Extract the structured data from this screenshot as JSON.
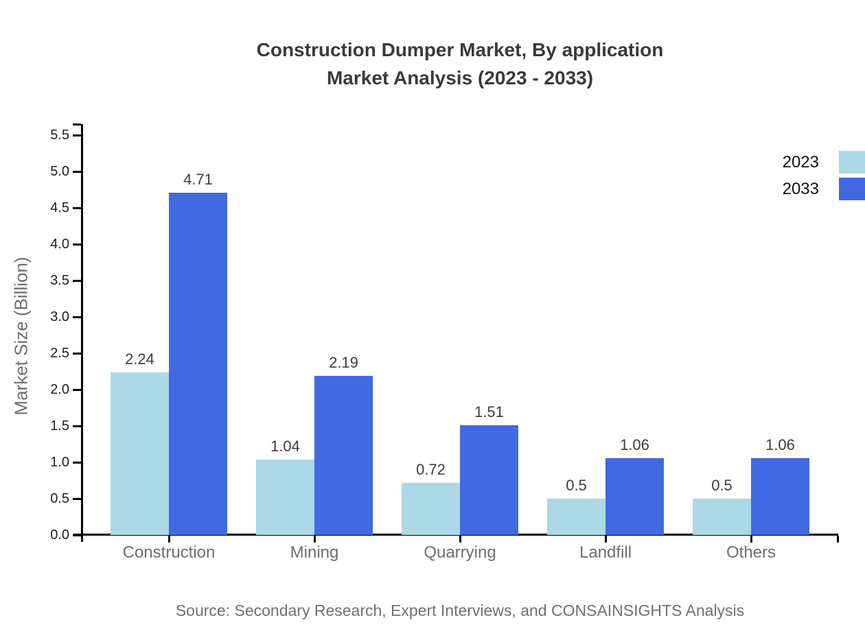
{
  "page": {
    "background": "#ffffff"
  },
  "chart_data": {
    "type": "bar",
    "title": "Construction Dumper Market, By application Market Analysis (2023 - 2033)",
    "title_lines": [
      "Construction Dumper Market, By application",
      "Market Analysis (2023 - 2033)"
    ],
    "ylabel": "Market Size (Billion)",
    "categories": [
      "Construction",
      "Mining",
      "Quarrying",
      "Landfill",
      "Others"
    ],
    "series": [
      {
        "name": "2023",
        "color": "#ADD8E6",
        "values": [
          2.24,
          1.04,
          0.72,
          0.5,
          0.5
        ],
        "value_labels": [
          "2.24",
          "1.04",
          "0.72",
          "0.5",
          "0.5"
        ]
      },
      {
        "name": "2033",
        "color": "#4169E1",
        "values": [
          4.71,
          2.19,
          1.51,
          1.06,
          1.06
        ],
        "value_labels": [
          "4.71",
          "2.19",
          "1.51",
          "1.06",
          "1.06"
        ]
      }
    ],
    "ytick_labels": [
      "0.0",
      "0.5",
      "1.0",
      "1.5",
      "2.0",
      "2.5",
      "3.0",
      "3.5",
      "4.0",
      "4.5",
      "5.0",
      "5.5"
    ],
    "ytick_step": 0.5,
    "ylim": [
      0,
      5.65
    ],
    "grid": false,
    "legend_position": "top-right",
    "source": "Source: Secondary Research, Expert Interviews, and CONSAINSIGHTS Analysis"
  }
}
